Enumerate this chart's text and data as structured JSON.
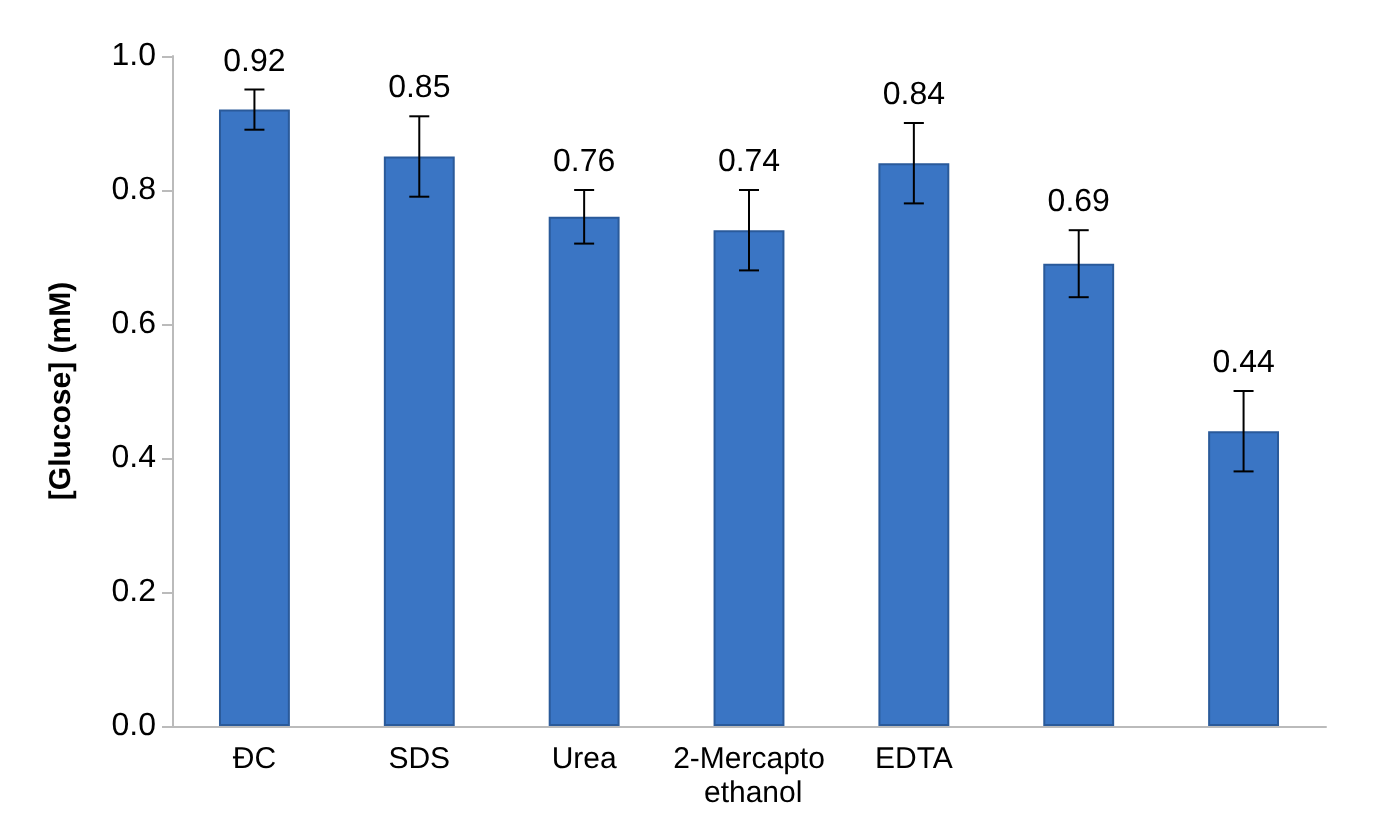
{
  "chart_data": {
    "type": "bar",
    "ylabel": "[Glucose] (mM)",
    "categories": [
      "ĐC",
      "SDS",
      "Urea",
      "2-Mercapto ethanol",
      "EDTA",
      null,
      null
    ],
    "values": [
      0.92,
      0.85,
      0.76,
      0.74,
      0.84,
      0.69,
      0.44
    ],
    "errors": [
      0.03,
      0.06,
      0.04,
      0.06,
      0.06,
      0.05,
      0.06
    ],
    "color": "#3a75c4",
    "data_labels": true,
    "grid": false,
    "ylim": [
      0,
      1
    ],
    "yticks": [
      {
        "value": 0,
        "label": "0.0"
      },
      {
        "value": 0.2,
        "label": "0.2"
      },
      {
        "value": 0.4,
        "label": "0.4"
      },
      {
        "value": 0.6,
        "label": "0.6"
      },
      {
        "value": 0.8,
        "label": "0.8"
      },
      {
        "value": 1,
        "label": "1.0"
      }
    ]
  }
}
